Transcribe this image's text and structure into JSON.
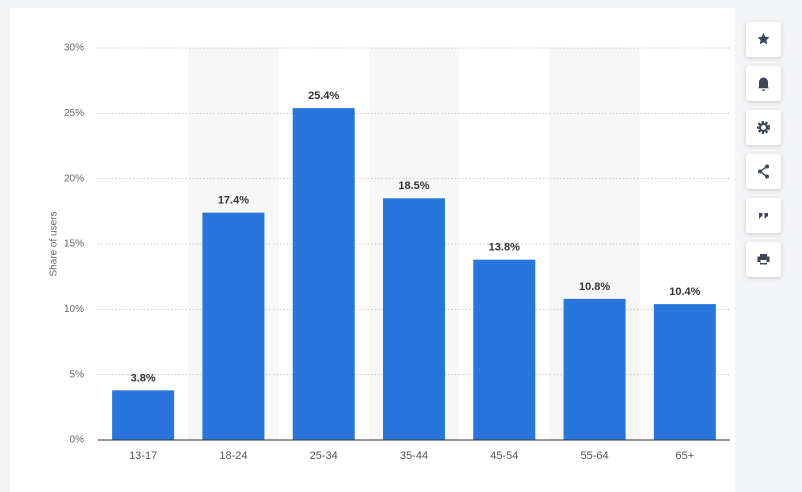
{
  "chart_data": {
    "type": "bar",
    "y_label": "Share of users",
    "categories": [
      "13-17",
      "18-24",
      "25-34",
      "35-44",
      "45-54",
      "55-64",
      "65+"
    ],
    "values": [
      3.8,
      17.4,
      25.4,
      18.5,
      13.8,
      10.8,
      10.4
    ],
    "value_labels": [
      "3.8%",
      "17.4%",
      "25.4%",
      "18.5%",
      "13.8%",
      "10.8%",
      "10.4%"
    ],
    "color": "#2876dd",
    "ylim": [
      0,
      30
    ],
    "yticks": [
      {
        "value": 0,
        "label": "0%"
      },
      {
        "value": 5,
        "label": "5%"
      },
      {
        "value": 10,
        "label": "10%"
      },
      {
        "value": 15,
        "label": "15%"
      },
      {
        "value": 20,
        "label": "20%"
      },
      {
        "value": 25,
        "label": "25%"
      },
      {
        "value": 30,
        "label": "30%"
      }
    ],
    "grid": true
  }
}
